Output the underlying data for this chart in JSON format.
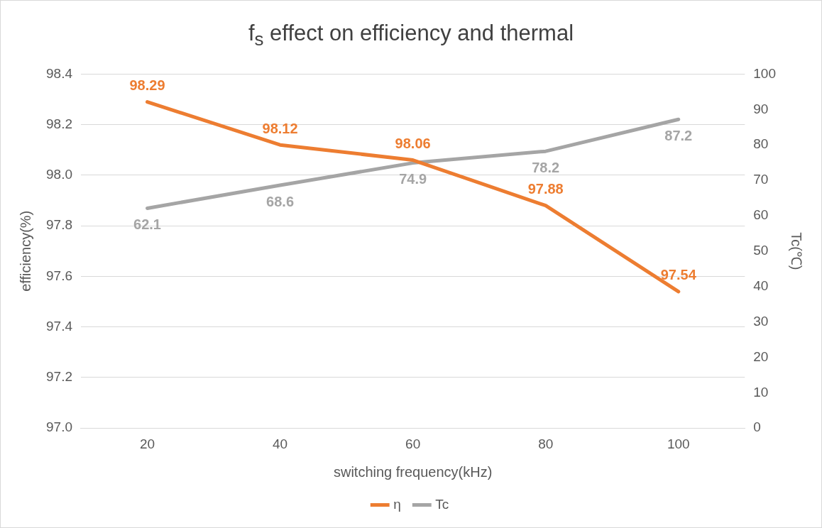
{
  "chart_data": {
    "type": "line",
    "title": "f$_{s}$ effect on efficiency and thermal",
    "xlabel": "switching frequency(kHz)",
    "ylabel": "efficiency(%)",
    "y2label": "Tc(℃)",
    "categories": [
      "20",
      "40",
      "60",
      "80",
      "100"
    ],
    "series": [
      {
        "name": "η",
        "color": "#ed7d31",
        "values": [
          98.29,
          98.12,
          98.06,
          97.88,
          97.54
        ]
      },
      {
        "name": "Tc",
        "color": "#a5a5a5",
        "axis": "y2",
        "values": [
          62.1,
          68.6,
          74.9,
          78.2,
          87.2
        ]
      }
    ],
    "ylim": [
      97.0,
      98.4
    ],
    "yticks": [
      {
        "value": 97.0,
        "label": "97.0"
      },
      97.2,
      97.4,
      97.6,
      97.8,
      {
        "value": 98.0,
        "label": "98.0"
      },
      98.2,
      98.4
    ],
    "y2lim": [
      0,
      100
    ],
    "y2ticks": [
      0,
      10,
      20,
      30,
      40,
      50,
      60,
      70,
      80,
      90,
      100
    ],
    "grid": "y",
    "legend": "bottom",
    "marker": "none",
    "line_style": "solid",
    "data_labels": true
  }
}
